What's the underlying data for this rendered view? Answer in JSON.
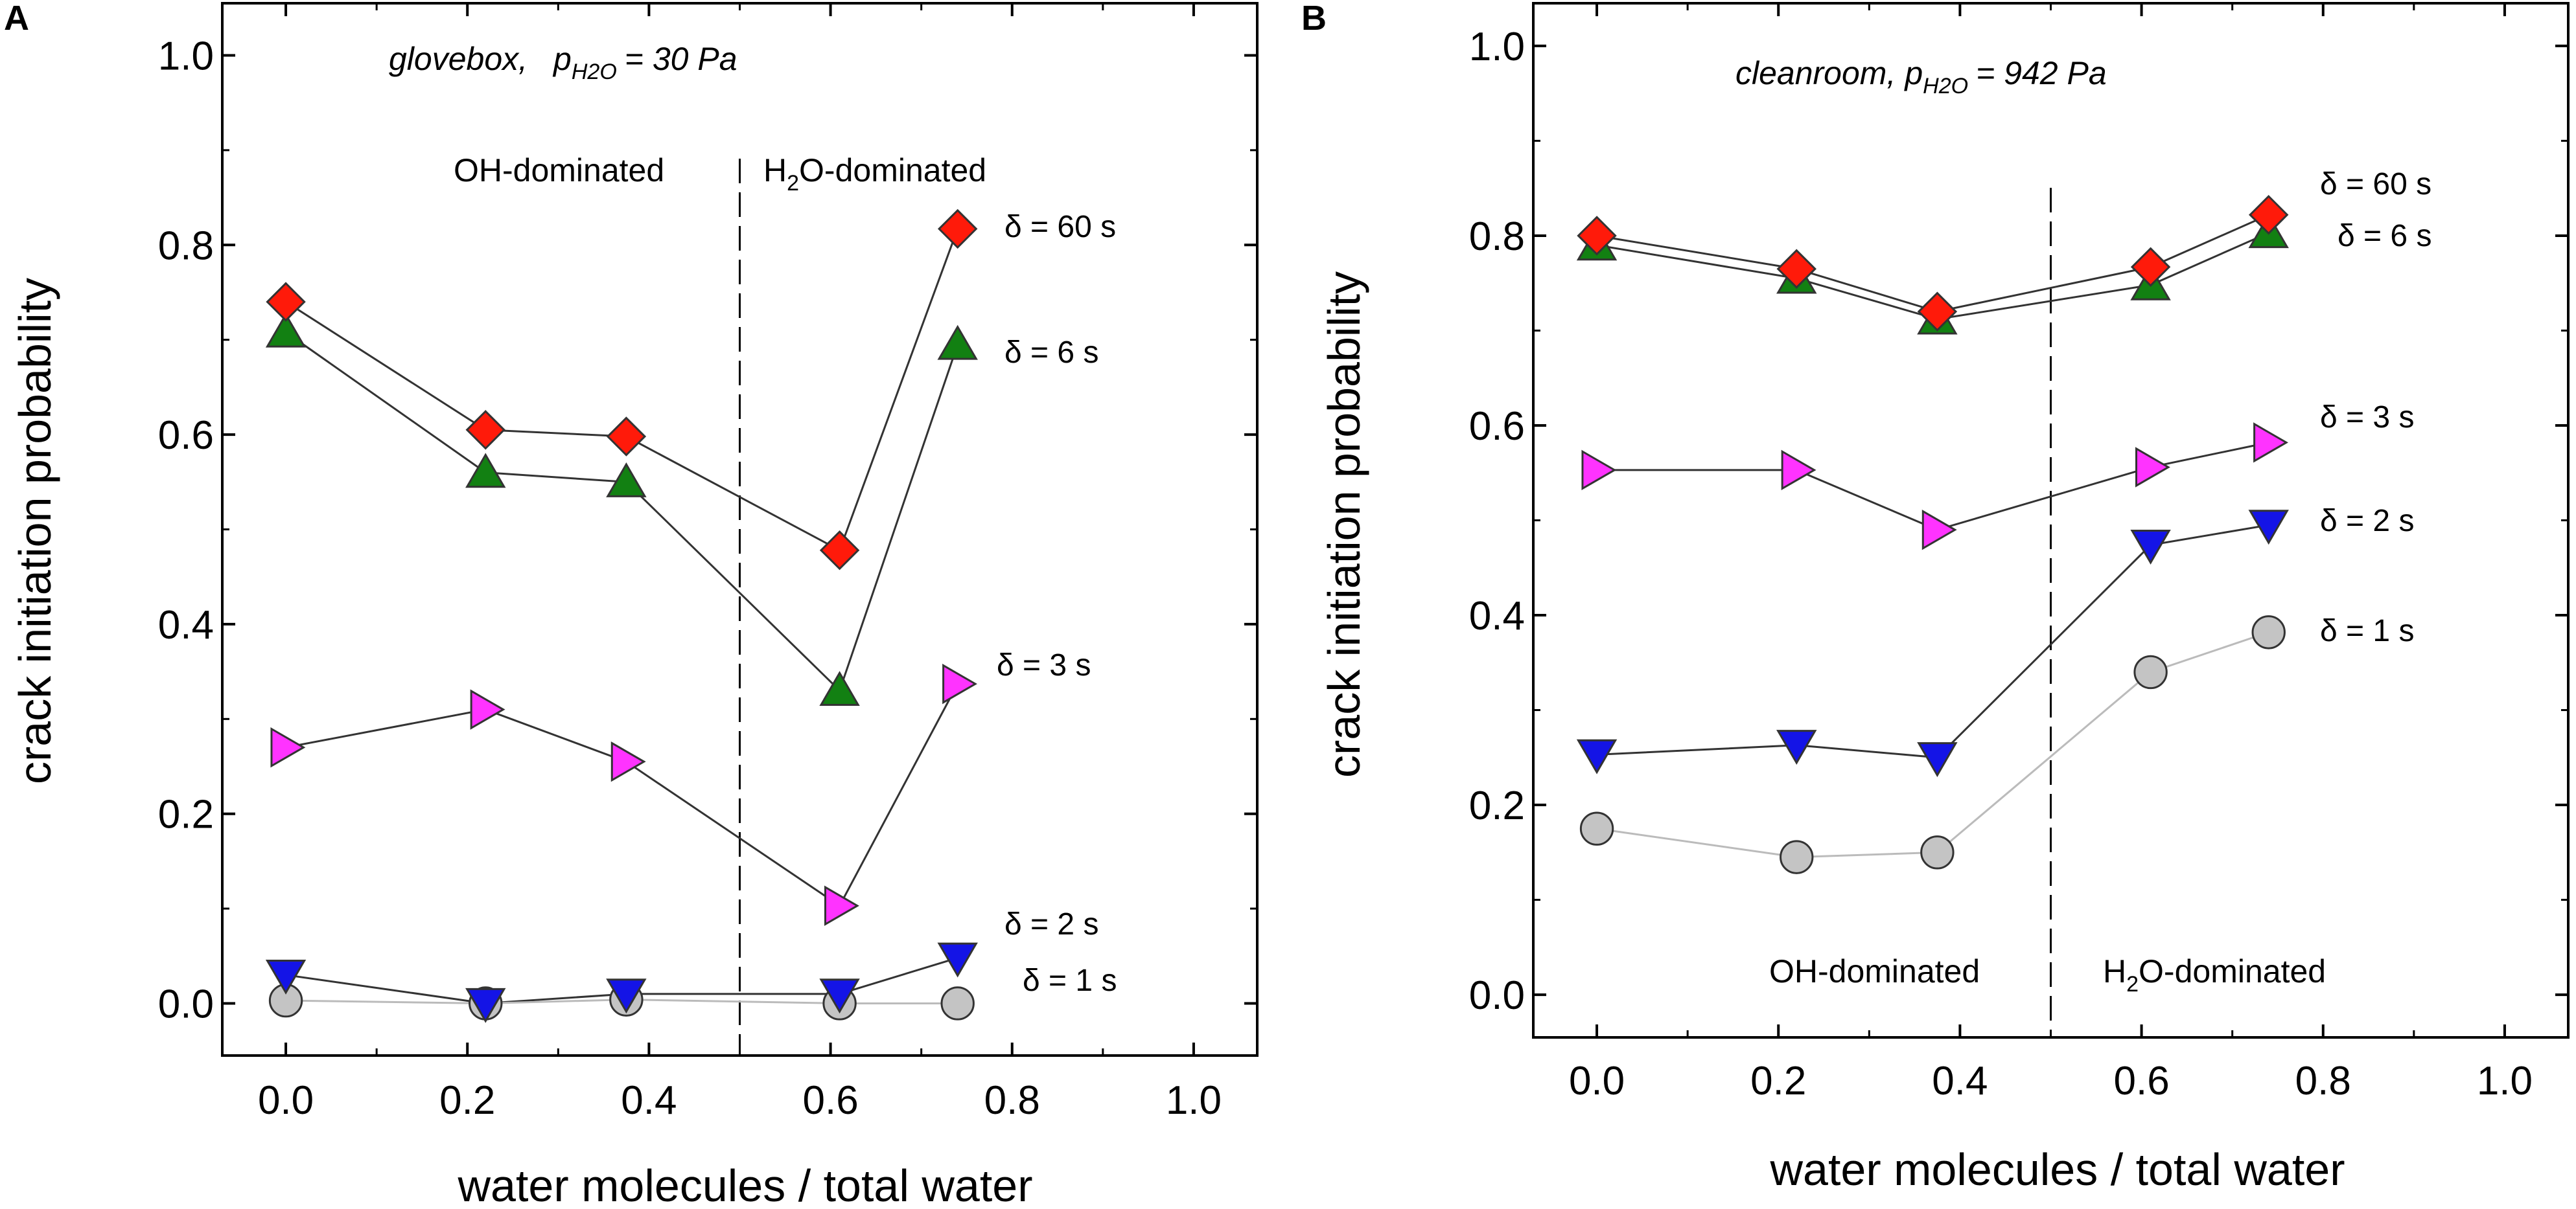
{
  "colors": {
    "delta_60": "#ff1a0a",
    "delta_6": "#128012",
    "delta_3": "#ff33ff",
    "delta_2": "#1414e6",
    "delta_1": "#c4c4c4",
    "line": "#333333"
  },
  "chart_data": [
    {
      "panel": "A",
      "type": "scatter",
      "title_condition": "glovebox,",
      "title_pressure": "p",
      "title_pressure_sub": "H2O",
      "title_pressure_value": "= 30 Pa",
      "xlabel": "water molecules / total water",
      "ylabel": "crack initiation probability",
      "xlim": [
        -0.07,
        1.07
      ],
      "ylim": [
        -0.055,
        1.055
      ],
      "x_ticks": [
        0.0,
        0.2,
        0.4,
        0.6,
        0.8,
        1.0
      ],
      "x_tick_labels": [
        "0.0",
        "0.2",
        "0.4",
        "0.6",
        "0.8",
        "1.0"
      ],
      "y_ticks": [
        0.0,
        0.2,
        0.4,
        0.6,
        0.8,
        1.0
      ],
      "y_tick_labels": [
        "0.0",
        "0.2",
        "0.4",
        "0.6",
        "0.8",
        "1.0"
      ],
      "divider_x": 0.5,
      "region_left_label": "OH-dominated",
      "region_right_label_main": "O-dominated",
      "region_right_label_prefix": "H",
      "region_right_label_sub": "2",
      "x": [
        0.0,
        0.22,
        0.375,
        0.61,
        0.74
      ],
      "series": [
        {
          "name": "δ = 60 s",
          "key": "delta_60",
          "marker": "diamond",
          "values": [
            0.74,
            0.605,
            0.598,
            0.478,
            0.817
          ]
        },
        {
          "name": "δ = 6 s",
          "key": "delta_6",
          "marker": "triangle-up",
          "values": [
            0.708,
            0.56,
            0.55,
            0.33,
            0.695
          ]
        },
        {
          "name": "δ = 3 s",
          "key": "delta_3",
          "marker": "triangle-right",
          "values": [
            0.27,
            0.31,
            0.255,
            0.103,
            0.337
          ]
        },
        {
          "name": "δ = 2 s",
          "key": "delta_2",
          "marker": "triangle-down",
          "values": [
            0.03,
            0.0,
            0.01,
            0.01,
            0.048
          ]
        },
        {
          "name": "δ = 1 s",
          "key": "delta_1",
          "marker": "circle",
          "values": [
            0.003,
            0.0,
            0.004,
            0.0,
            0.0
          ]
        }
      ]
    },
    {
      "panel": "B",
      "type": "scatter",
      "title_condition": "cleanroom,",
      "title_pressure": "p",
      "title_pressure_sub": "H2O",
      "title_pressure_value": "= 942 Pa",
      "xlabel": "water molecules / total water",
      "ylabel": "crack initiation probability",
      "xlim": [
        -0.07,
        1.07
      ],
      "ylim": [
        -0.045,
        1.045
      ],
      "x_ticks": [
        0.0,
        0.2,
        0.4,
        0.6,
        0.8,
        1.0
      ],
      "x_tick_labels": [
        "0.0",
        "0.2",
        "0.4",
        "0.6",
        "0.8",
        "1.0"
      ],
      "y_ticks": [
        0.0,
        0.2,
        0.4,
        0.6,
        0.8,
        1.0
      ],
      "y_tick_labels": [
        "0.0",
        "0.2",
        "0.4",
        "0.6",
        "0.8",
        "1.0"
      ],
      "divider_x": 0.5,
      "region_left_label": "OH-dominated",
      "region_right_label_main": "O-dominated",
      "region_right_label_prefix": "H",
      "region_right_label_sub": "2",
      "x": [
        0.0,
        0.22,
        0.375,
        0.61,
        0.74
      ],
      "series": [
        {
          "name": "δ = 60 s",
          "key": "delta_60",
          "marker": "diamond",
          "values": [
            0.8,
            0.765,
            0.72,
            0.767,
            0.822
          ]
        },
        {
          "name": "δ = 6 s",
          "key": "delta_6",
          "marker": "triangle-up",
          "values": [
            0.79,
            0.755,
            0.712,
            0.748,
            0.803
          ]
        },
        {
          "name": "δ = 3 s",
          "key": "delta_3",
          "marker": "triangle-right",
          "values": [
            0.553,
            0.553,
            0.49,
            0.556,
            0.582
          ]
        },
        {
          "name": "δ = 2 s",
          "key": "delta_2",
          "marker": "triangle-down",
          "values": [
            0.253,
            0.263,
            0.25,
            0.474,
            0.495
          ]
        },
        {
          "name": "δ = 1 s",
          "key": "delta_1",
          "marker": "circle",
          "values": [
            0.175,
            0.145,
            0.15,
            0.34,
            0.382
          ]
        }
      ]
    }
  ]
}
